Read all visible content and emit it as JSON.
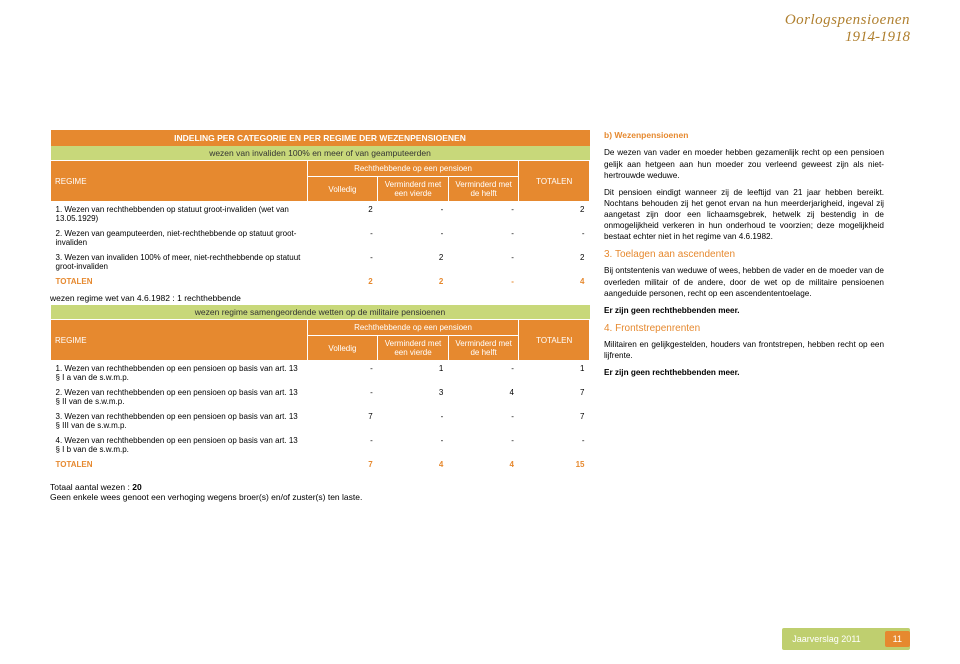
{
  "header": {
    "line1": "Oorlogspensioenen",
    "line2": "1914-1918"
  },
  "table1": {
    "title": "INDELING PER CATEGORIE EN PER REGIME DER WEZENPENSIOENEN",
    "subtitle": "wezen van invaliden 100% en meer of van geamputeerden",
    "regime_h": "REGIME",
    "rh_pensioen": "Rechthebbende op een pensioen",
    "col_volledig": "Volledig",
    "col_v4": "Verminderd met een vierde",
    "col_vh": "Verminderd met de helft",
    "col_tot": "TOTALEN",
    "rows": [
      {
        "label": "1. Wezen van rechthebbenden op statuut groot-invaliden (wet van 13.05.1929)",
        "c1": "2",
        "c2": "-",
        "c3": "-",
        "c4": "2"
      },
      {
        "label": "2. Wezen van geamputeerden, niet-rechthebbende op statuut groot-invaliden",
        "c1": "-",
        "c2": "-",
        "c3": "-",
        "c4": "-"
      },
      {
        "label": "3. Wezen van invaliden 100% of meer, niet-rechthebbende op statuut groot-invaliden",
        "c1": "-",
        "c2": "2",
        "c3": "-",
        "c4": "2"
      }
    ],
    "tot_label": "TOTALEN",
    "t1": "2",
    "t2": "2",
    "t3": "-",
    "t4": "4"
  },
  "mid_note": "wezen regime wet van 4.6.1982 : 1 rechthebbende",
  "table2": {
    "subtitle": "wezen regime samengeordende wetten op de militaire pensioenen",
    "regime_h": "REGIME",
    "rh_pensioen": "Rechthebbende op een pensioen",
    "col_volledig": "Volledig",
    "col_v4": "Verminderd met een vierde",
    "col_vh": "Verminderd met de helft",
    "col_tot": "TOTALEN",
    "rows": [
      {
        "label": "1. Wezen van rechthebbenden op een pensioen op basis van art. 13 § I a van de s.w.m.p.",
        "c1": "-",
        "c2": "1",
        "c3": "-",
        "c4": "1"
      },
      {
        "label": "2. Wezen van rechthebbenden op een pensioen op basis van art. 13 § II van de s.w.m.p.",
        "c1": "-",
        "c2": "3",
        "c3": "4",
        "c4": "7"
      },
      {
        "label": "3. Wezen van rechthebbenden op een pensioen op basis van art. 13 § III van de s.w.m.p.",
        "c1": "7",
        "c2": "-",
        "c3": "-",
        "c4": "7"
      },
      {
        "label": "4. Wezen van rechthebbenden op een pensioen op basis van art. 13 § I b van de s.w.m.p.",
        "c1": "-",
        "c2": "-",
        "c3": "-",
        "c4": "-"
      }
    ],
    "tot_label": "TOTALEN",
    "t1": "7",
    "t2": "4",
    "t3": "4",
    "t4": "15"
  },
  "bottom": {
    "l1": "Totaal aantal wezen : 20",
    "l2": "Geen enkele wees genoot een verhoging wegens broer(s) en/of zuster(s) ten laste."
  },
  "right": {
    "b_title": "b) Wezenpensioenen",
    "p1": "De wezen van vader en moeder hebben gezamenlijk recht op een pensioen gelijk aan hetgeen aan hun moeder zou verleend geweest zijn als niet-hertrouwde weduwe.",
    "p2": "Dit pensioen eindigt wanneer zij de leeftijd van 21 jaar hebben bereikt. Nochtans behouden zij het genot ervan na hun meerderjarigheid, ingeval zij aangetast zijn door een lichaamsgebrek, hetwelk zij bestendig in de onmogelijkheid verkeren in hun onderhoud te voorzien; deze mogelijkheid bestaat echter niet in het regime van 4.6.1982.",
    "h3": "3. Toelagen aan ascendenten",
    "p3": "Bij ontstentenis van weduwe of wees, hebben de vader en de moeder van de overleden militair of de andere, door de wet op de militaire pensioenen aangeduide personen, recht op een ascendententoelage.",
    "p4": "Er zijn geen rechthebbenden meer.",
    "h4": "4. Frontstrepenrenten",
    "p5": "Militairen en gelijkgestelden, houders van frontstrepen, hebben recht op een lijfrente.",
    "p6": "Er zijn geen rechthebbenden meer."
  },
  "footer": {
    "text": "Jaarverslag 2011",
    "page": "11"
  }
}
